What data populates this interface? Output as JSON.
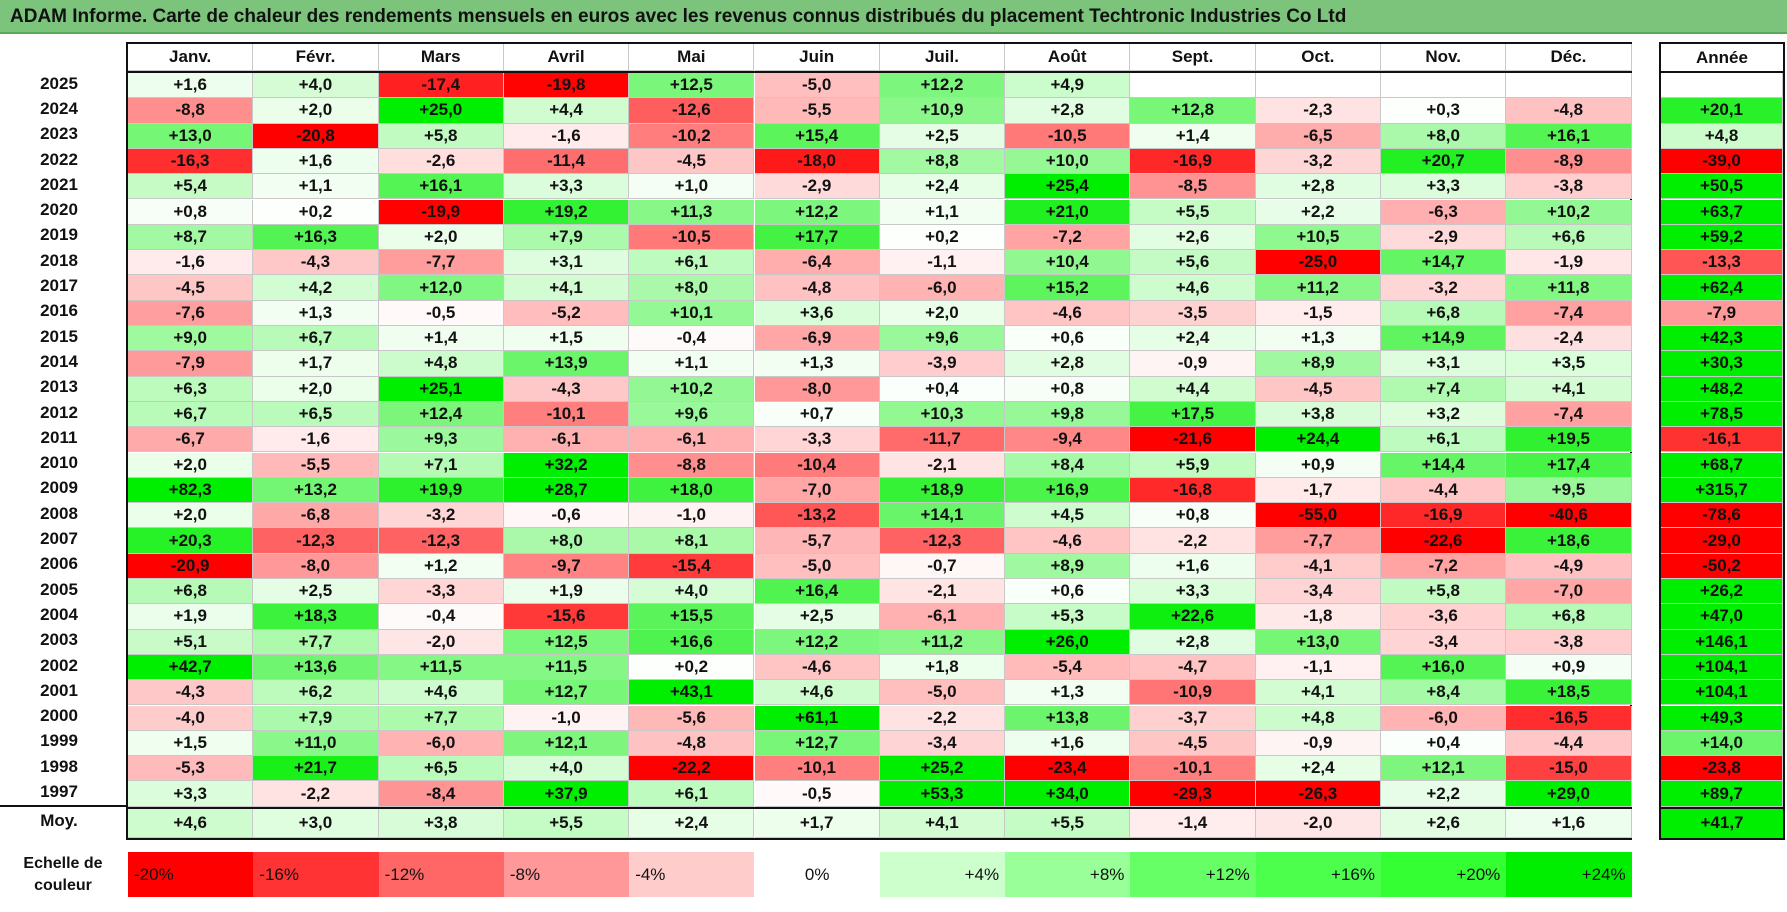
{
  "title": "ADAM Informe. Carte de chaleur des rendements mensuels en euros avec les revenus connus distribués du placement Techtronic Industries Co Ltd",
  "chart_data": {
    "type": "heatmap",
    "columns": [
      "Janv.",
      "Févr.",
      "Mars",
      "Avril",
      "Mai",
      "Juin",
      "Juil.",
      "Août",
      "Sept.",
      "Oct.",
      "Nov.",
      "Déc."
    ],
    "year_column": "Année",
    "avg_label": "Moy.",
    "rows": [
      {
        "year": "2025",
        "values": [
          1.6,
          4.0,
          -17.4,
          -19.8,
          12.5,
          -5.0,
          12.2,
          4.9,
          null,
          null,
          null,
          null
        ],
        "annual": null
      },
      {
        "year": "2024",
        "values": [
          -8.8,
          2.0,
          25.0,
          4.4,
          -12.6,
          -5.5,
          10.9,
          2.8,
          12.8,
          -2.3,
          0.3,
          -4.8
        ],
        "annual": 20.1
      },
      {
        "year": "2023",
        "values": [
          13.0,
          -20.8,
          5.8,
          -1.6,
          -10.2,
          15.4,
          2.5,
          -10.5,
          1.4,
          -6.5,
          8.0,
          16.1
        ],
        "annual": 4.8
      },
      {
        "year": "2022",
        "values": [
          -16.3,
          1.6,
          -2.6,
          -11.4,
          -4.5,
          -18.0,
          8.8,
          10.0,
          -16.9,
          -3.2,
          20.7,
          -8.9
        ],
        "annual": -39.0
      },
      {
        "year": "2021",
        "values": [
          5.4,
          1.1,
          16.1,
          3.3,
          1.0,
          -2.9,
          2.4,
          25.4,
          -8.5,
          2.8,
          3.3,
          -3.8
        ],
        "annual": 50.5
      },
      {
        "year": "2020",
        "values": [
          0.8,
          0.2,
          -19.9,
          19.2,
          11.3,
          12.2,
          1.1,
          21.0,
          5.5,
          2.2,
          -6.3,
          10.2
        ],
        "annual": 63.7
      },
      {
        "year": "2019",
        "values": [
          8.7,
          16.3,
          2.0,
          7.9,
          -10.5,
          17.7,
          0.2,
          -7.2,
          2.6,
          10.5,
          -2.9,
          6.6
        ],
        "annual": 59.2
      },
      {
        "year": "2018",
        "values": [
          -1.6,
          -4.3,
          -7.7,
          3.1,
          6.1,
          -6.4,
          -1.1,
          10.4,
          5.6,
          -25.0,
          14.7,
          -1.9
        ],
        "annual": -13.3
      },
      {
        "year": "2017",
        "values": [
          -4.5,
          4.2,
          12.0,
          4.1,
          8.0,
          -4.8,
          -6.0,
          15.2,
          4.6,
          11.2,
          -3.2,
          11.8
        ],
        "annual": 62.4
      },
      {
        "year": "2016",
        "values": [
          -7.6,
          1.3,
          -0.5,
          -5.2,
          10.1,
          3.6,
          2.0,
          -4.6,
          -3.5,
          -1.5,
          6.8,
          -7.4
        ],
        "annual": -7.9
      },
      {
        "year": "2015",
        "values": [
          9.0,
          6.7,
          1.4,
          1.5,
          -0.4,
          -6.9,
          9.6,
          0.6,
          2.4,
          1.3,
          14.9,
          -2.4
        ],
        "annual": 42.3
      },
      {
        "year": "2014",
        "values": [
          -7.9,
          1.7,
          4.8,
          13.9,
          1.1,
          1.3,
          -3.9,
          2.8,
          -0.9,
          8.9,
          3.1,
          3.5
        ],
        "annual": 30.3
      },
      {
        "year": "2013",
        "values": [
          6.3,
          2.0,
          25.1,
          -4.3,
          10.2,
          -8.0,
          0.4,
          0.8,
          4.4,
          -4.5,
          7.4,
          4.1
        ],
        "annual": 48.2
      },
      {
        "year": "2012",
        "values": [
          6.7,
          6.5,
          12.4,
          -10.1,
          9.6,
          0.7,
          10.3,
          9.8,
          17.5,
          3.8,
          3.2,
          -7.4
        ],
        "annual": 78.5
      },
      {
        "year": "2011",
        "values": [
          -6.7,
          -1.6,
          9.3,
          -6.1,
          -6.1,
          -3.3,
          -11.7,
          -9.4,
          -21.6,
          24.4,
          6.1,
          19.5
        ],
        "annual": -16.1
      },
      {
        "year": "2010",
        "values": [
          2.0,
          -5.5,
          7.1,
          32.2,
          -8.8,
          -10.4,
          -2.1,
          8.4,
          5.9,
          0.9,
          14.4,
          17.4
        ],
        "annual": 68.7
      },
      {
        "year": "2009",
        "values": [
          82.3,
          13.2,
          19.9,
          28.7,
          18.0,
          -7.0,
          18.9,
          16.9,
          -16.8,
          -1.7,
          -4.4,
          9.5
        ],
        "annual": 315.7
      },
      {
        "year": "2008",
        "values": [
          2.0,
          -6.8,
          -3.2,
          -0.6,
          -1.0,
          -13.2,
          14.1,
          4.5,
          0.8,
          -55.0,
          -16.9,
          -40.6
        ],
        "annual": -78.6
      },
      {
        "year": "2007",
        "values": [
          20.3,
          -12.3,
          -12.3,
          8.0,
          8.1,
          -5.7,
          -12.3,
          -4.6,
          -2.2,
          -7.7,
          -22.6,
          18.6
        ],
        "annual": -29.0
      },
      {
        "year": "2006",
        "values": [
          -20.9,
          -8.0,
          1.2,
          -9.7,
          -15.4,
          -5.0,
          -0.7,
          8.9,
          1.6,
          -4.1,
          -7.2,
          -4.9
        ],
        "annual": -50.2
      },
      {
        "year": "2005",
        "values": [
          6.8,
          2.5,
          -3.3,
          1.9,
          4.0,
          16.4,
          -2.1,
          0.6,
          3.3,
          -3.4,
          5.8,
          -7.0
        ],
        "annual": 26.2
      },
      {
        "year": "2004",
        "values": [
          1.9,
          18.3,
          -0.4,
          -15.6,
          15.5,
          2.5,
          -6.1,
          5.3,
          22.6,
          -1.8,
          -3.6,
          6.8
        ],
        "annual": 47.0
      },
      {
        "year": "2003",
        "values": [
          5.1,
          7.7,
          -2.0,
          12.5,
          16.6,
          12.2,
          11.2,
          26.0,
          2.8,
          13.0,
          -3.4,
          -3.8
        ],
        "annual": 146.1
      },
      {
        "year": "2002",
        "values": [
          42.7,
          13.6,
          11.5,
          11.5,
          0.2,
          -4.6,
          1.8,
          -5.4,
          -4.7,
          -1.1,
          16.0,
          0.9
        ],
        "annual": 104.1
      },
      {
        "year": "2001",
        "values": [
          -4.3,
          6.2,
          4.6,
          12.7,
          43.1,
          4.6,
          -5.0,
          1.3,
          -10.9,
          4.1,
          8.4,
          18.5
        ],
        "annual": 104.1
      },
      {
        "year": "2000",
        "values": [
          -4.0,
          7.9,
          7.7,
          -1.0,
          -5.6,
          61.1,
          -2.2,
          13.8,
          -3.7,
          4.8,
          -6.0,
          -16.5
        ],
        "annual": 49.3
      },
      {
        "year": "1999",
        "values": [
          1.5,
          11.0,
          -6.0,
          12.1,
          -4.8,
          12.7,
          -3.4,
          1.6,
          -4.5,
          -0.9,
          0.4,
          -4.4
        ],
        "annual": 14.0
      },
      {
        "year": "1998",
        "values": [
          -5.3,
          21.7,
          6.5,
          4.0,
          -22.2,
          -10.1,
          25.2,
          -23.4,
          -10.1,
          2.4,
          12.1,
          -15.0
        ],
        "annual": -23.8
      },
      {
        "year": "1997",
        "values": [
          3.3,
          -2.2,
          -8.4,
          37.9,
          6.1,
          -0.5,
          53.3,
          34.0,
          -29.3,
          -26.3,
          2.2,
          29.0
        ],
        "annual": 89.7
      }
    ],
    "average": {
      "values": [
        4.6,
        3.0,
        3.8,
        5.5,
        2.4,
        1.7,
        4.1,
        5.5,
        -1.4,
        -2.0,
        2.6,
        1.6
      ],
      "annual": 41.7
    },
    "scale_label": "Echelle de couleur",
    "scale": [
      {
        "label": "-20%",
        "color": "#ff0000"
      },
      {
        "label": "-16%",
        "color": "#ff3333"
      },
      {
        "label": "-12%",
        "color": "#ff6666"
      },
      {
        "label": "-8%",
        "color": "#ff9999"
      },
      {
        "label": "-4%",
        "color": "#ffcccc"
      },
      {
        "label": "0%",
        "color": "#ffffff"
      },
      {
        "label": "+4%",
        "color": "#ccffcc"
      },
      {
        "label": "+8%",
        "color": "#99ff99"
      },
      {
        "label": "+12%",
        "color": "#66ff66"
      },
      {
        "label": "+16%",
        "color": "#4cff4c"
      },
      {
        "label": "+20%",
        "color": "#33ff33"
      },
      {
        "label": "+24%",
        "color": "#00ee00"
      }
    ]
  }
}
